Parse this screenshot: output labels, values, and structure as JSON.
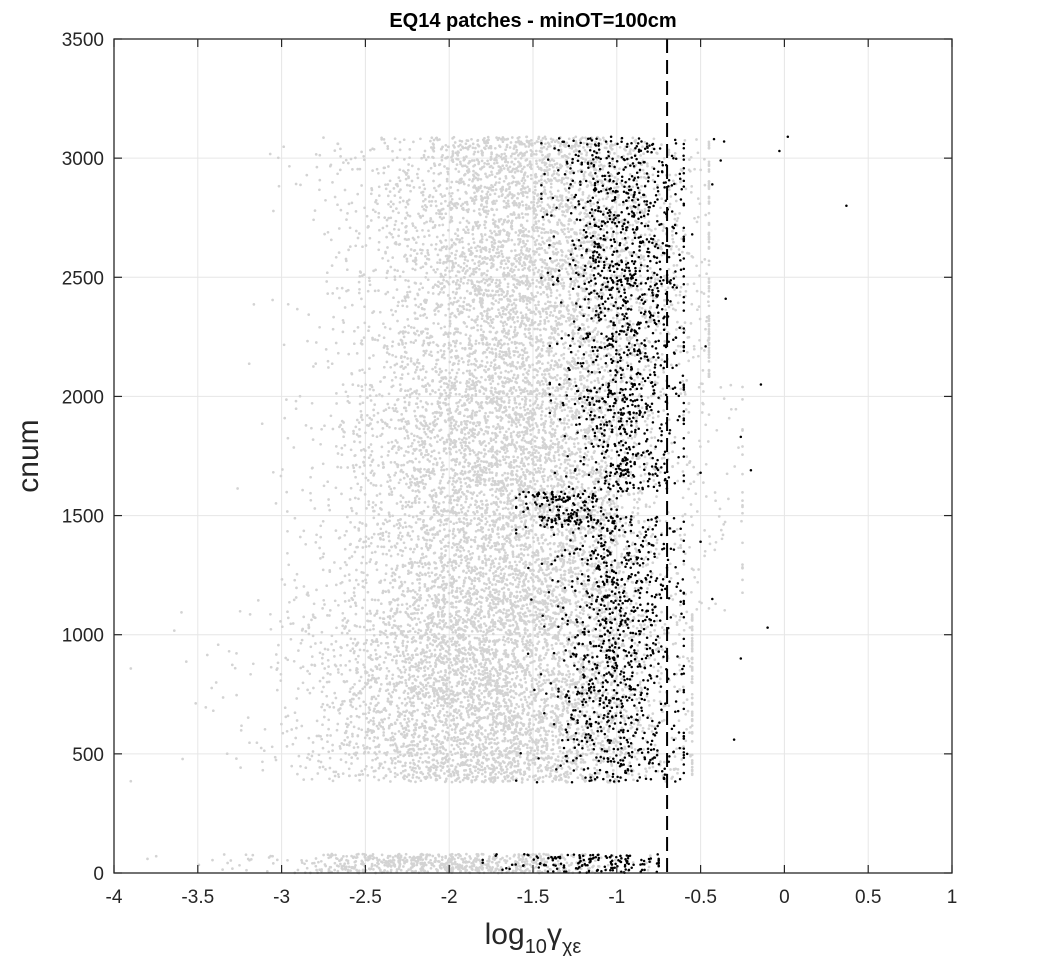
{
  "chart_data": {
    "type": "scatter",
    "title": "EQ14 patches - minOT=100cm",
    "xlabel": {
      "base": "log",
      "base_sub": "10",
      "symbol": "γ",
      "symbol_sub": "χε"
    },
    "ylabel": "cnum",
    "xlim": [
      -4,
      1
    ],
    "ylim": [
      0,
      3500
    ],
    "x_ticks": [
      -4,
      -3.5,
      -3,
      -2.5,
      -2,
      -1.5,
      -1,
      -0.5,
      0,
      0.5,
      1
    ],
    "x_tick_labels": [
      "-4",
      "-3.5",
      "-3",
      "-2.5",
      "-2",
      "-1.5",
      "-1",
      "-0.5",
      "0",
      "0.5",
      "1"
    ],
    "y_ticks": [
      0,
      500,
      1000,
      1500,
      2000,
      2500,
      3000,
      3500
    ],
    "y_tick_labels": [
      "0",
      "500",
      "1000",
      "1500",
      "2000",
      "2500",
      "3000",
      "3500"
    ],
    "grid": true,
    "reference_line": {
      "x": -0.7,
      "style": "dashed",
      "color": "#000000"
    },
    "series": [
      {
        "color": "#d3d3d3",
        "distribution": {
          "bands": [
            {
              "y_range": [
                0,
                80
              ],
              "x_center": -2.0,
              "x_spread": 0.5,
              "x_min": -3.8,
              "x_max": -0.8,
              "count": 700
            },
            {
              "y_range": [
                380,
                1100
              ],
              "x_center": -1.75,
              "x_spread": 0.55,
              "x_min": -3.9,
              "x_max": -0.55,
              "count": 4200
            },
            {
              "y_range": [
                1100,
                2050
              ],
              "x_center": -1.65,
              "x_spread": 0.5,
              "x_min": -3.6,
              "x_max": -0.25,
              "count": 4500
            },
            {
              "y_range": [
                2050,
                3090
              ],
              "x_center": -1.55,
              "x_spread": 0.5,
              "x_min": -3.5,
              "x_max": -0.45,
              "count": 4300
            }
          ]
        }
      },
      {
        "color": "#000000",
        "points": [
          [
            0.02,
            3090
          ],
          [
            -0.03,
            3030
          ],
          [
            0.37,
            2800
          ],
          [
            -0.14,
            2050
          ],
          [
            -0.1,
            1030
          ],
          [
            -0.26,
            1830
          ],
          [
            -0.2,
            1690
          ],
          [
            -0.3,
            560
          ],
          [
            -0.26,
            900
          ],
          [
            -0.35,
            2410
          ],
          [
            -0.38,
            2990
          ],
          [
            -0.43,
            2890
          ],
          [
            -0.47,
            2210
          ],
          [
            -0.43,
            1150
          ],
          [
            -0.55,
            2680
          ],
          [
            -0.5,
            1390
          ],
          [
            -0.42,
            3080
          ],
          [
            -0.58,
            500
          ],
          [
            -0.5,
            1680
          ],
          [
            -0.36,
            3070
          ]
        ],
        "distribution": {
          "bands": [
            {
              "y_range": [
                0,
                80
              ],
              "x_center": -1.15,
              "x_spread": 0.25,
              "x_min": -1.8,
              "x_max": -0.75,
              "count": 150
            },
            {
              "y_range": [
                380,
                1500
              ],
              "x_center": -1.0,
              "x_spread": 0.2,
              "x_min": -1.6,
              "x_max": -0.6,
              "count": 900
            },
            {
              "y_range": [
                1450,
                1600
              ],
              "x_center": -1.3,
              "x_spread": 0.15,
              "x_min": -1.6,
              "x_max": -1.0,
              "count": 160
            },
            {
              "y_range": [
                1600,
                2500
              ],
              "x_center": -0.95,
              "x_spread": 0.18,
              "x_min": -1.4,
              "x_max": -0.6,
              "count": 700
            },
            {
              "y_range": [
                2450,
                3090
              ],
              "x_center": -0.98,
              "x_spread": 0.2,
              "x_min": -1.45,
              "x_max": -0.6,
              "count": 560
            }
          ]
        }
      }
    ]
  }
}
